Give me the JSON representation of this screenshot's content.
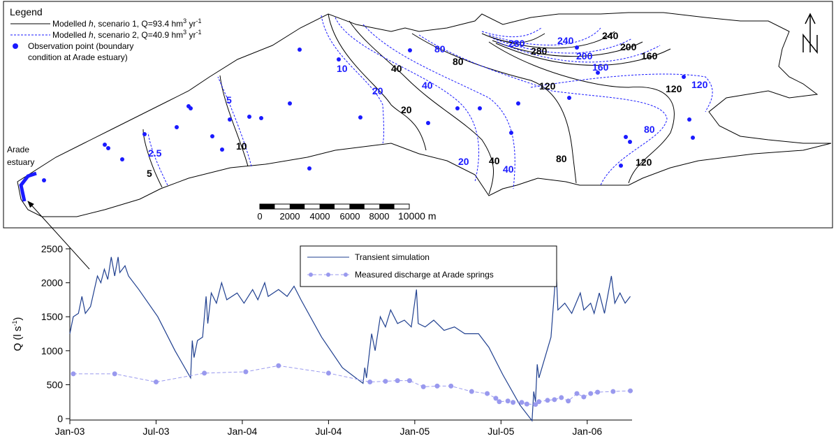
{
  "map": {
    "legend_title": "Legend",
    "entries": [
      [
        "Modelled ",
        "h",
        ", scenario 1, Q=93.4 hm",
        "3",
        " yr",
        "-1"
      ],
      [
        "Modelled ",
        "h",
        ", scenario 2, Q=40.9 hm",
        "3",
        " yr",
        "-1"
      ],
      [
        "Observation point (boundary",
        "condition at Arade estuary)"
      ]
    ],
    "estuary_label": [
      "Arade",
      "estuary"
    ],
    "contour_labels_black": [
      "280",
      "240",
      "200",
      "160",
      "80",
      "40",
      "20",
      "120",
      "120",
      "40",
      "80",
      "120",
      "10",
      "5"
    ],
    "contour_labels_blue": [
      "280",
      "240",
      "200",
      "160",
      "80",
      "10",
      "20",
      "40",
      "120",
      "80",
      "20",
      "40",
      "2.5",
      "5"
    ],
    "scale_labels": [
      "0",
      "2000",
      "4000",
      "6000",
      "8000",
      "10000 m"
    ]
  },
  "chart_data": {
    "type": "line",
    "ylabel": [
      "Q (l s",
      "-1",
      ")"
    ],
    "xlim": [
      2003,
      2006.26
    ],
    "ylim": [
      -20,
      2500
    ],
    "xticks": [
      {
        "value": 2003,
        "label": "Jan-03"
      },
      {
        "value": 2003.5,
        "label": "Jul-03"
      },
      {
        "value": 2004,
        "label": "Jan-04"
      },
      {
        "value": 2004.5,
        "label": "Jul-04"
      },
      {
        "value": 2005,
        "label": "Jan-05"
      },
      {
        "value": 2005.5,
        "label": "Jul-05"
      },
      {
        "value": 2006,
        "label": "Jan-06"
      }
    ],
    "yticks": [
      0,
      500,
      1000,
      1500,
      2000,
      2500
    ],
    "series": [
      {
        "name": "Transient simulation",
        "color": "#1f3f8f",
        "x": [
          2003.0,
          2003.02,
          2003.05,
          2003.07,
          2003.09,
          2003.12,
          2003.16,
          2003.18,
          2003.2,
          2003.22,
          2003.24,
          2003.26,
          2003.28,
          2003.29,
          2003.32,
          2003.34,
          2003.4,
          2003.51,
          2003.61,
          2003.7,
          2003.71,
          2003.72,
          2003.74,
          2003.77,
          2003.79,
          2003.8,
          2003.82,
          2003.85,
          2003.88,
          2003.91,
          2003.97,
          2004.01,
          2004.06,
          2004.09,
          2004.13,
          2004.15,
          2004.21,
          2004.26,
          2004.3,
          2004.34,
          2004.46,
          2004.58,
          2004.7,
          2004.71,
          2004.72,
          2004.75,
          2004.77,
          2004.8,
          2004.83,
          2004.86,
          2004.9,
          2004.94,
          2004.98,
          2005.01,
          2005.02,
          2005.06,
          2005.11,
          2005.17,
          2005.23,
          2005.29,
          2005.37,
          2005.43,
          2005.51,
          2005.61,
          2005.68,
          2005.69,
          2005.7,
          2005.71,
          2005.72,
          2005.79,
          2005.82,
          2005.83,
          2005.87,
          2005.91,
          2005.96,
          2005.98,
          2006.02,
          2006.04,
          2006.07,
          2006.1,
          2006.14,
          2006.16,
          2006.19,
          2006.22,
          2006.25
        ],
        "values": [
          1250,
          1500,
          1550,
          1800,
          1550,
          1650,
          2100,
          2000,
          2200,
          2050,
          2380,
          2100,
          2380,
          2150,
          2250,
          2100,
          1900,
          1500,
          1000,
          600,
          1150,
          900,
          1150,
          1200,
          1800,
          1400,
          1850,
          1700,
          2000,
          1750,
          1850,
          1700,
          1900,
          1750,
          2000,
          1800,
          1900,
          1800,
          1950,
          1750,
          1200,
          750,
          520,
          750,
          600,
          1250,
          1000,
          1500,
          1350,
          1600,
          1400,
          1450,
          1350,
          1900,
          1400,
          1350,
          1450,
          1300,
          1350,
          1250,
          1250,
          1050,
          650,
          200,
          -30,
          400,
          250,
          800,
          600,
          1200,
          2200,
          1600,
          1700,
          1550,
          1850,
          1600,
          1700,
          1550,
          1850,
          1550,
          2100,
          1700,
          1850,
          1700,
          1800
        ]
      },
      {
        "name": "Measured discharge at Arade springs",
        "color": "#9999ee",
        "x": [
          2003.02,
          2003.26,
          2003.5,
          2003.78,
          2004.02,
          2004.21,
          2004.5,
          2004.74,
          2004.83,
          2004.9,
          2004.97,
          2005.05,
          2005.13,
          2005.21,
          2005.33,
          2005.42,
          2005.47,
          2005.49,
          2005.54,
          2005.57,
          2005.62,
          2005.65,
          2005.7,
          2005.72,
          2005.77,
          2005.81,
          2005.85,
          2005.89,
          2005.94,
          2005.98,
          2006.02,
          2006.06,
          2006.15,
          2006.25
        ],
        "values": [
          660,
          660,
          540,
          670,
          690,
          780,
          670,
          540,
          550,
          560,
          560,
          470,
          480,
          480,
          400,
          370,
          300,
          250,
          260,
          240,
          240,
          215,
          210,
          250,
          270,
          280,
          310,
          260,
          370,
          320,
          370,
          390,
          400,
          410
        ]
      }
    ]
  }
}
